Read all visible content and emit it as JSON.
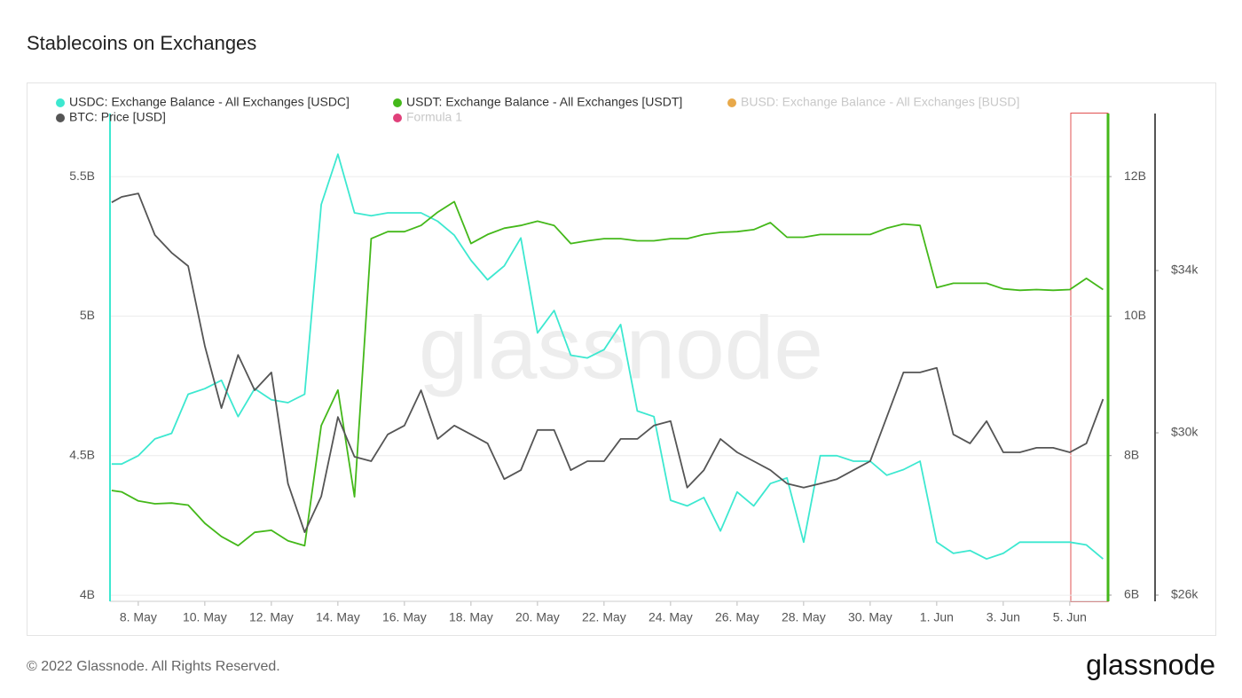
{
  "chart_data": {
    "type": "line",
    "title": "Stablecoins on Exchanges",
    "watermark": "glassnode",
    "footer": "© 2022 Glassnode. All Rights Reserved.",
    "logo": "glassnode",
    "x": [
      7.2,
      7.5,
      8,
      8.5,
      9,
      9.5,
      10,
      10.5,
      11,
      11.5,
      12,
      12.5,
      13,
      13.5,
      14,
      14.5,
      15,
      15.5,
      16,
      16.5,
      17,
      17.5,
      18,
      18.5,
      19,
      19.5,
      20,
      20.5,
      21,
      21.5,
      22,
      22.5,
      23,
      23.5,
      24,
      24.5,
      25,
      25.5,
      26,
      26.5,
      27,
      27.5,
      28,
      28.5,
      29,
      29.5,
      30,
      30.5,
      31,
      31.5,
      32,
      32.5,
      33,
      33.5,
      34,
      34.5,
      35,
      35.5,
      36,
      36.5,
      37
    ],
    "xlim": [
      7.15,
      37.15
    ],
    "xticks": [
      {
        "value": 8,
        "label": "8. May"
      },
      {
        "value": 10,
        "label": "10. May"
      },
      {
        "value": 12,
        "label": "12. May"
      },
      {
        "value": 14,
        "label": "14. May"
      },
      {
        "value": 16,
        "label": "16. May"
      },
      {
        "value": 18,
        "label": "18. May"
      },
      {
        "value": 20,
        "label": "20. May"
      },
      {
        "value": 22,
        "label": "22. May"
      },
      {
        "value": 24,
        "label": "24. May"
      },
      {
        "value": 26,
        "label": "26. May"
      },
      {
        "value": 28,
        "label": "28. May"
      },
      {
        "value": 30,
        "label": "30. May"
      },
      {
        "value": 32,
        "label": "1. Jun"
      },
      {
        "value": 34,
        "label": "3. Jun"
      },
      {
        "value": 36,
        "label": "5. Jun"
      }
    ],
    "ylim": [
      3.978,
      5.726
    ],
    "yticks": [
      {
        "value": 4,
        "label": "4B"
      },
      {
        "value": 4.5,
        "label": "4.5B"
      },
      {
        "value": 5,
        "label": "5B"
      },
      {
        "value": 5.5,
        "label": "5.5B"
      }
    ],
    "y2lim": [
      5.911,
      12.904
    ],
    "y2ticks": [
      {
        "value": 6,
        "label": "6B"
      },
      {
        "value": 8,
        "label": "8B"
      },
      {
        "value": 10,
        "label": "10B"
      },
      {
        "value": 12,
        "label": "12B"
      }
    ],
    "y3lim": [
      25847,
      37870
    ],
    "y3ticks": [
      {
        "value": 26000,
        "label": "$26k"
      },
      {
        "value": 30000,
        "label": "$30k"
      },
      {
        "value": 34000,
        "label": "$34k"
      }
    ],
    "grid": true,
    "series": [
      {
        "name": "USDC: Exchange Balance - All Exchanges [USDC]",
        "color": "#3de8d0",
        "axis": "y",
        "values": [
          4.47,
          4.47,
          4.5,
          4.56,
          4.58,
          4.72,
          4.74,
          4.77,
          4.64,
          4.74,
          4.7,
          4.69,
          4.72,
          5.4,
          5.58,
          5.37,
          5.36,
          5.37,
          5.37,
          5.37,
          5.34,
          5.29,
          5.2,
          5.13,
          5.18,
          5.28,
          4.94,
          5.02,
          4.86,
          4.85,
          4.88,
          4.97,
          4.66,
          4.64,
          4.34,
          4.32,
          4.35,
          4.23,
          4.37,
          4.32,
          4.4,
          4.42,
          4.19,
          4.5,
          4.5,
          4.48,
          4.48,
          4.43,
          4.45,
          4.48,
          4.19,
          4.15,
          4.16,
          4.13,
          4.15,
          4.19,
          4.19,
          4.19,
          4.19,
          4.18,
          4.13
        ]
      },
      {
        "name": "USDT: Exchange Balance - All Exchanges [USDT]",
        "color": "#44b81a",
        "axis": "y2",
        "values": [
          7.5,
          7.48,
          7.35,
          7.31,
          7.32,
          7.29,
          7.03,
          6.84,
          6.71,
          6.9,
          6.93,
          6.78,
          6.71,
          8.43,
          8.94,
          7.41,
          11.11,
          11.21,
          11.21,
          11.3,
          11.49,
          11.64,
          11.04,
          11.17,
          11.26,
          11.3,
          11.36,
          11.3,
          11.04,
          11.08,
          11.11,
          11.11,
          11.08,
          11.08,
          11.11,
          11.11,
          11.17,
          11.2,
          11.21,
          11.24,
          11.34,
          11.13,
          11.13,
          11.17,
          11.17,
          11.17,
          11.17,
          11.26,
          11.32,
          11.3,
          10.41,
          10.47,
          10.47,
          10.47,
          10.39,
          10.37,
          10.38,
          10.37,
          10.38,
          10.54,
          10.38
        ]
      },
      {
        "name": "BTC: Price [USD]",
        "color": "#555555",
        "axis": "y3",
        "values": [
          35680,
          35815,
          35900,
          34875,
          34440,
          34110,
          32140,
          30610,
          31920,
          31050,
          31490,
          28750,
          27550,
          28430,
          30390,
          29410,
          29300,
          29960,
          30180,
          31050,
          29850,
          30180,
          29960,
          29740,
          28860,
          29080,
          30070,
          30070,
          29080,
          29300,
          29300,
          29850,
          29850,
          30180,
          30290,
          28650,
          29080,
          29850,
          29520,
          29300,
          29080,
          28750,
          28650,
          28750,
          28860,
          29080,
          29300,
          30390,
          31490,
          31490,
          31600,
          29960,
          29740,
          30290,
          29520,
          29520,
          29630,
          29630,
          29520,
          29740,
          30830
        ]
      }
    ],
    "hidden_legend": [
      {
        "name": "BUSD: Exchange Balance - All Exchanges [BUSD]",
        "color": "#e8a94a"
      },
      {
        "name": "Formula 1",
        "color": "#e0407a"
      }
    ]
  }
}
